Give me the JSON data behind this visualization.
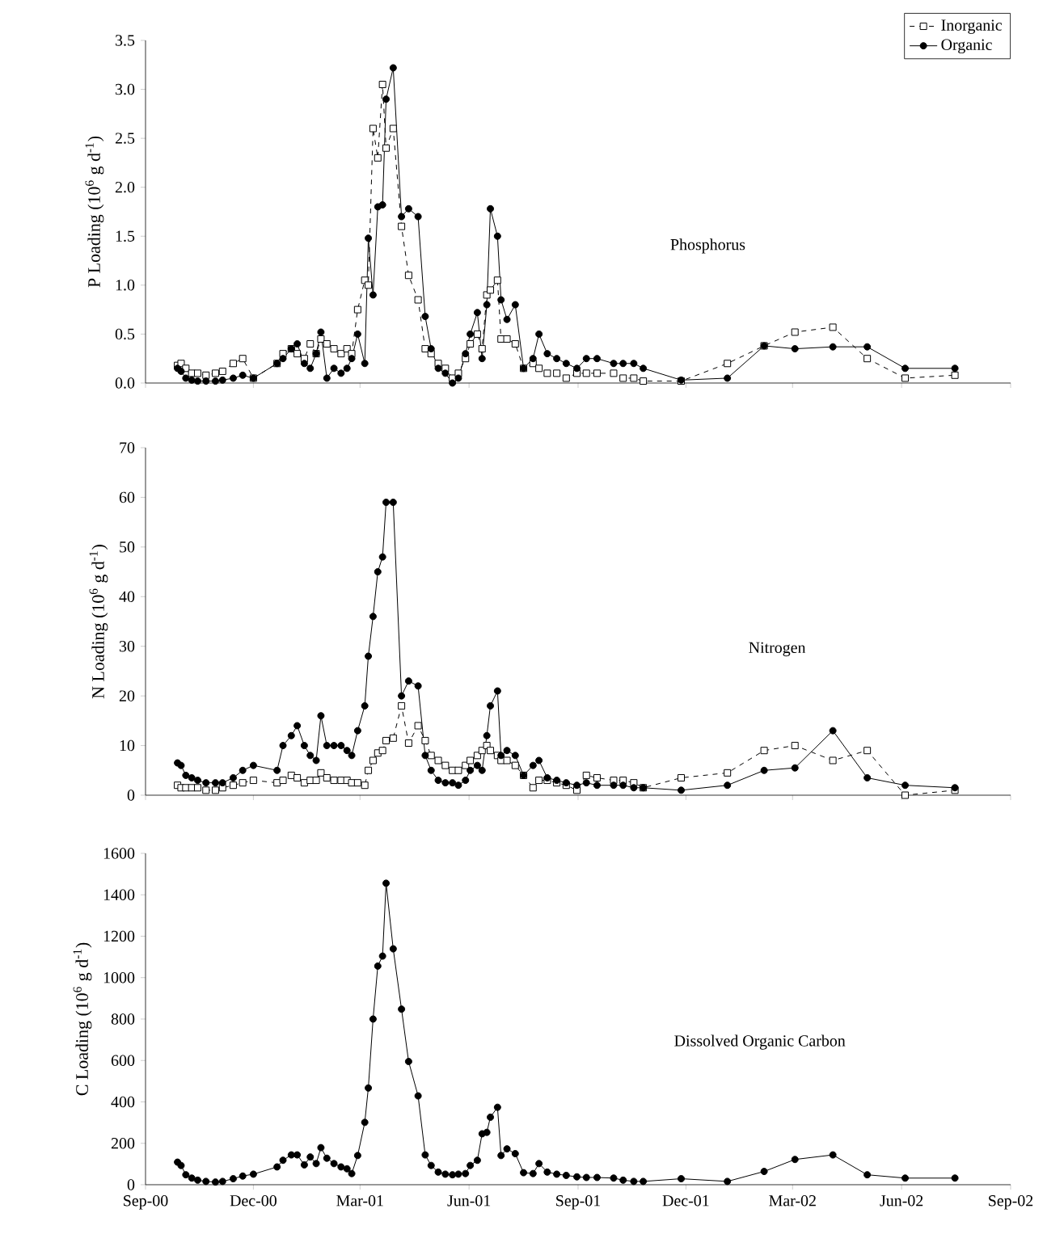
{
  "chart_data": [
    {
      "type": "line",
      "ylabel": "P Loading (10$^{6}$ g d$^{-1}$)",
      "annotations": [
        "Phosphorus"
      ],
      "legend": "top right",
      "tick_labels": "y",
      "xlim": [
        "2000-09-01",
        "2002-09-01"
      ],
      "xticks": [
        {
          "value": "2000-09-01",
          "label": null
        },
        {
          "value": "2000-12-01",
          "label": null
        },
        {
          "value": "2001-03-01",
          "label": null
        },
        {
          "value": "2001-06-01",
          "label": null
        },
        {
          "value": "2001-09-01",
          "label": null
        },
        {
          "value": "2001-12-01",
          "label": null
        },
        {
          "value": "2002-03-01",
          "label": null
        },
        {
          "value": "2002-06-01",
          "label": null
        },
        {
          "value": "2002-09-01",
          "label": null
        }
      ],
      "ylim": [
        0,
        3.5
      ],
      "yticks": [
        {
          "value": 0,
          "label": "0.0"
        },
        {
          "value": 0.5,
          "label": "0.5"
        },
        {
          "value": 1,
          "label": "1.0"
        },
        {
          "value": 1.5,
          "label": "1.5"
        },
        {
          "value": 2,
          "label": "2.0"
        },
        {
          "value": 2.5,
          "label": "2.5"
        },
        {
          "value": 3,
          "label": "3.0"
        },
        {
          "value": 3.5,
          "label": "3.5"
        }
      ],
      "x": [
        "2000-09-28",
        "2000-10-01",
        "2000-10-05",
        "2000-10-10",
        "2000-10-15",
        "2000-10-22",
        "2000-10-30",
        "2000-11-05",
        "2000-11-14",
        "2000-11-22",
        "2000-12-01",
        "2000-12-21",
        "2000-12-26",
        "2001-01-02",
        "2001-01-07",
        "2001-01-13",
        "2001-01-18",
        "2001-01-23",
        "2001-01-27",
        "2001-02-01",
        "2001-02-07",
        "2001-02-13",
        "2001-02-18",
        "2001-02-22",
        "2001-02-27",
        "2001-03-05",
        "2001-03-08",
        "2001-03-12",
        "2001-03-16",
        "2001-03-20",
        "2001-03-23",
        "2001-03-29",
        "2001-04-05",
        "2001-04-11",
        "2001-04-19",
        "2001-04-25",
        "2001-04-30",
        "2001-05-06",
        "2001-05-12",
        "2001-05-18",
        "2001-05-23",
        "2001-05-29",
        "2001-06-02",
        "2001-06-08",
        "2001-06-12",
        "2001-06-16",
        "2001-06-19",
        "2001-06-25",
        "2001-06-28",
        "2001-07-03",
        "2001-07-10",
        "2001-07-17",
        "2001-07-25",
        "2001-07-30",
        "2001-08-06",
        "2001-08-14",
        "2001-08-22",
        "2001-08-31",
        "2001-09-08",
        "2001-09-17",
        "2001-10-01",
        "2001-10-09",
        "2001-10-18",
        "2001-10-26",
        "2001-11-27",
        "2002-01-05",
        "2002-02-05",
        "2002-03-03",
        "2002-04-04",
        "2002-05-03",
        "2002-06-04",
        "2002-07-16"
      ],
      "series": [
        {
          "name": "Inorganic",
          "color": "#000000",
          "marker": "square",
          "line_style": "dashed",
          "values": [
            0.18,
            0.2,
            0.15,
            0.1,
            0.1,
            0.08,
            0.1,
            0.12,
            0.2,
            0.25,
            0.05,
            0.2,
            0.3,
            0.35,
            0.3,
            0.25,
            0.4,
            0.3,
            0.45,
            0.4,
            0.35,
            0.3,
            0.35,
            0.3,
            0.75,
            1.05,
            1.0,
            2.6,
            2.3,
            3.05,
            2.4,
            2.6,
            1.6,
            1.1,
            0.85,
            0.35,
            0.3,
            0.2,
            0.15,
            0.05,
            0.1,
            0.25,
            0.4,
            0.5,
            0.35,
            0.9,
            0.95,
            1.05,
            0.45,
            0.45,
            0.4,
            0.15,
            0.2,
            0.15,
            0.1,
            0.1,
            0.05,
            0.1,
            0.1,
            0.1,
            0.1,
            0.05,
            0.05,
            0.02,
            0.02,
            0.2,
            0.38,
            0.52,
            0.57,
            0.25,
            0.05,
            0.08
          ]
        },
        {
          "name": "Organic",
          "color": "#000000",
          "marker": "circle",
          "line_style": "solid",
          "values": [
            0.15,
            0.12,
            0.05,
            0.03,
            0.02,
            0.02,
            0.02,
            0.03,
            0.05,
            0.08,
            0.05,
            0.2,
            0.25,
            0.35,
            0.4,
            0.2,
            0.15,
            0.3,
            0.52,
            0.05,
            0.15,
            0.1,
            0.15,
            0.25,
            0.5,
            0.2,
            1.48,
            0.9,
            1.8,
            1.82,
            2.9,
            3.22,
            1.7,
            1.78,
            1.7,
            0.68,
            0.35,
            0.15,
            0.1,
            0.0,
            0.05,
            0.3,
            0.5,
            0.72,
            0.25,
            0.8,
            1.78,
            1.5,
            0.85,
            0.65,
            0.8,
            0.15,
            0.25,
            0.5,
            0.3,
            0.25,
            0.2,
            0.15,
            0.25,
            0.25,
            0.2,
            0.2,
            0.2,
            0.15,
            0.03,
            0.05,
            0.38,
            0.35,
            0.37,
            0.37,
            0.15,
            0.15
          ]
        }
      ]
    },
    {
      "type": "line",
      "ylabel": "N Loading (10$^{6}$ g d$^{-1}$)",
      "annotations": [
        "Nitrogen"
      ],
      "tick_labels": "y",
      "xlim": [
        "2000-09-01",
        "2002-09-01"
      ],
      "xticks": [
        {
          "value": "2000-09-01",
          "label": null
        },
        {
          "value": "2000-12-01",
          "label": null
        },
        {
          "value": "2001-03-01",
          "label": null
        },
        {
          "value": "2001-06-01",
          "label": null
        },
        {
          "value": "2001-09-01",
          "label": null
        },
        {
          "value": "2001-12-01",
          "label": null
        },
        {
          "value": "2002-03-01",
          "label": null
        },
        {
          "value": "2002-06-01",
          "label": null
        },
        {
          "value": "2002-09-01",
          "label": null
        }
      ],
      "ylim": [
        0,
        70
      ],
      "yticks": [
        0,
        10,
        20,
        30,
        40,
        50,
        60,
        70
      ],
      "x": [
        "2000-09-28",
        "2000-10-01",
        "2000-10-05",
        "2000-10-10",
        "2000-10-15",
        "2000-10-22",
        "2000-10-30",
        "2000-11-05",
        "2000-11-14",
        "2000-11-22",
        "2000-12-01",
        "2000-12-21",
        "2000-12-26",
        "2001-01-02",
        "2001-01-07",
        "2001-01-13",
        "2001-01-18",
        "2001-01-23",
        "2001-01-27",
        "2001-02-01",
        "2001-02-07",
        "2001-02-13",
        "2001-02-18",
        "2001-02-22",
        "2001-02-27",
        "2001-03-05",
        "2001-03-08",
        "2001-03-12",
        "2001-03-16",
        "2001-03-20",
        "2001-03-23",
        "2001-03-29",
        "2001-04-05",
        "2001-04-11",
        "2001-04-19",
        "2001-04-25",
        "2001-04-30",
        "2001-05-06",
        "2001-05-12",
        "2001-05-18",
        "2001-05-23",
        "2001-05-29",
        "2001-06-02",
        "2001-06-08",
        "2001-06-12",
        "2001-06-16",
        "2001-06-19",
        "2001-06-25",
        "2001-06-28",
        "2001-07-03",
        "2001-07-10",
        "2001-07-17",
        "2001-07-25",
        "2001-07-30",
        "2001-08-06",
        "2001-08-14",
        "2001-08-22",
        "2001-08-31",
        "2001-09-08",
        "2001-09-17",
        "2001-10-01",
        "2001-10-09",
        "2001-10-18",
        "2001-10-26",
        "2001-11-27",
        "2002-01-05",
        "2002-02-05",
        "2002-03-03",
        "2002-04-04",
        "2002-05-03",
        "2002-06-04",
        "2002-07-16"
      ],
      "series": [
        {
          "color": "#000000",
          "marker": "square",
          "line_style": "dashed",
          "values": [
            2,
            1.5,
            1.5,
            1.5,
            1.5,
            1,
            1,
            1.5,
            2,
            2.5,
            3,
            2.5,
            3,
            4,
            3.5,
            2.5,
            3,
            3,
            4.5,
            3.5,
            3,
            3,
            3,
            2.5,
            2.5,
            2,
            5,
            7,
            8.5,
            9,
            11,
            11.5,
            18,
            10.5,
            14,
            11,
            8,
            7,
            6,
            5,
            5,
            6,
            7,
            8,
            9,
            10,
            9,
            8,
            7,
            7,
            6,
            4,
            1.5,
            3,
            3,
            2.5,
            2,
            1,
            4,
            3.5,
            3,
            3,
            2.5,
            1.5,
            3.5,
            4.5,
            9,
            10,
            7,
            9,
            0,
            1
          ]
        },
        {
          "color": "#000000",
          "marker": "circle",
          "line_style": "solid",
          "values": [
            6.5,
            6,
            4,
            3.5,
            3,
            2.5,
            2.5,
            2.5,
            3.5,
            5,
            6,
            5,
            10,
            12,
            14,
            10,
            8,
            7,
            16,
            10,
            10,
            10,
            9,
            8,
            13,
            18,
            28,
            36,
            45,
            48,
            59,
            59,
            20,
            23,
            22,
            8,
            5,
            3,
            2.5,
            2.5,
            2,
            3,
            5,
            6,
            5,
            12,
            18,
            21,
            8,
            9,
            8,
            4,
            6,
            7,
            3.5,
            3,
            2.5,
            2,
            2.5,
            2,
            2,
            2,
            1.5,
            1.5,
            1,
            2,
            5,
            5.5,
            13,
            3.5,
            2,
            1.5
          ]
        }
      ]
    },
    {
      "type": "line",
      "ylabel": "C Loading (10$^{6}$ g d$^{-1}$)",
      "annotations": [
        "Dissolved Organic Carbon"
      ],
      "xlim": [
        "2000-09-01",
        "2002-09-01"
      ],
      "xticks": [
        {
          "value": "2000-09-01",
          "label": "Sep-00"
        },
        {
          "value": "2000-12-01",
          "label": "Dec-00"
        },
        {
          "value": "2001-03-01",
          "label": "Mar-01"
        },
        {
          "value": "2001-06-01",
          "label": "Jun-01"
        },
        {
          "value": "2001-09-01",
          "label": "Sep-01"
        },
        {
          "value": "2001-12-01",
          "label": "Dec-01"
        },
        {
          "value": "2002-03-01",
          "label": "Mar-02"
        },
        {
          "value": "2002-06-01",
          "label": "Jun-02"
        },
        {
          "value": "2002-09-01",
          "label": "Sep-02"
        }
      ],
      "ylim": [
        0,
        1600
      ],
      "yticks": [
        0,
        200,
        400,
        600,
        800,
        1000,
        1200,
        1400,
        1600
      ],
      "x": [
        "2000-09-28",
        "2000-10-01",
        "2000-10-05",
        "2000-10-10",
        "2000-10-15",
        "2000-10-22",
        "2000-10-30",
        "2000-11-05",
        "2000-11-14",
        "2000-11-22",
        "2000-12-01",
        "2000-12-21",
        "2000-12-26",
        "2001-01-02",
        "2001-01-07",
        "2001-01-13",
        "2001-01-18",
        "2001-01-23",
        "2001-01-27",
        "2001-02-01",
        "2001-02-07",
        "2001-02-13",
        "2001-02-18",
        "2001-02-22",
        "2001-02-27",
        "2001-03-05",
        "2001-03-08",
        "2001-03-12",
        "2001-03-16",
        "2001-03-20",
        "2001-03-23",
        "2001-03-29",
        "2001-04-05",
        "2001-04-11",
        "2001-04-19",
        "2001-04-25",
        "2001-04-30",
        "2001-05-06",
        "2001-05-12",
        "2001-05-18",
        "2001-05-23",
        "2001-05-29",
        "2001-06-02",
        "2001-06-08",
        "2001-06-12",
        "2001-06-16",
        "2001-06-19",
        "2001-06-25",
        "2001-06-28",
        "2001-07-03",
        "2001-07-10",
        "2001-07-17",
        "2001-07-25",
        "2001-07-30",
        "2001-08-06",
        "2001-08-14",
        "2001-08-22",
        "2001-08-31",
        "2001-09-08",
        "2001-09-17",
        "2001-10-01",
        "2001-10-09",
        "2001-10-18",
        "2001-10-26",
        "2001-11-27",
        "2002-01-05",
        "2002-02-05",
        "2002-03-03",
        "2002-04-04",
        "2002-05-03",
        "2002-06-04",
        "2002-07-16"
      ],
      "series": [
        {
          "color": "#000000",
          "marker": "circle",
          "line_style": "solid",
          "values": [
            109,
            93,
            48,
            32,
            22,
            16,
            13,
            16,
            29,
            42,
            51,
            86,
            118,
            144,
            144,
            96,
            134,
            102,
            179,
            128,
            102,
            86,
            77,
            54,
            141,
            301,
            467,
            800,
            1056,
            1104,
            1456,
            1139,
            848,
            595,
            429,
            144,
            93,
            61,
            51,
            48,
            51,
            54,
            93,
            118,
            246,
            253,
            326,
            374,
            141,
            173,
            150,
            58,
            54,
            102,
            61,
            51,
            45,
            38,
            35,
            35,
            32,
            22,
            16,
            16,
            29,
            16,
            64,
            122,
            144,
            48,
            32,
            32
          ]
        }
      ]
    }
  ]
}
